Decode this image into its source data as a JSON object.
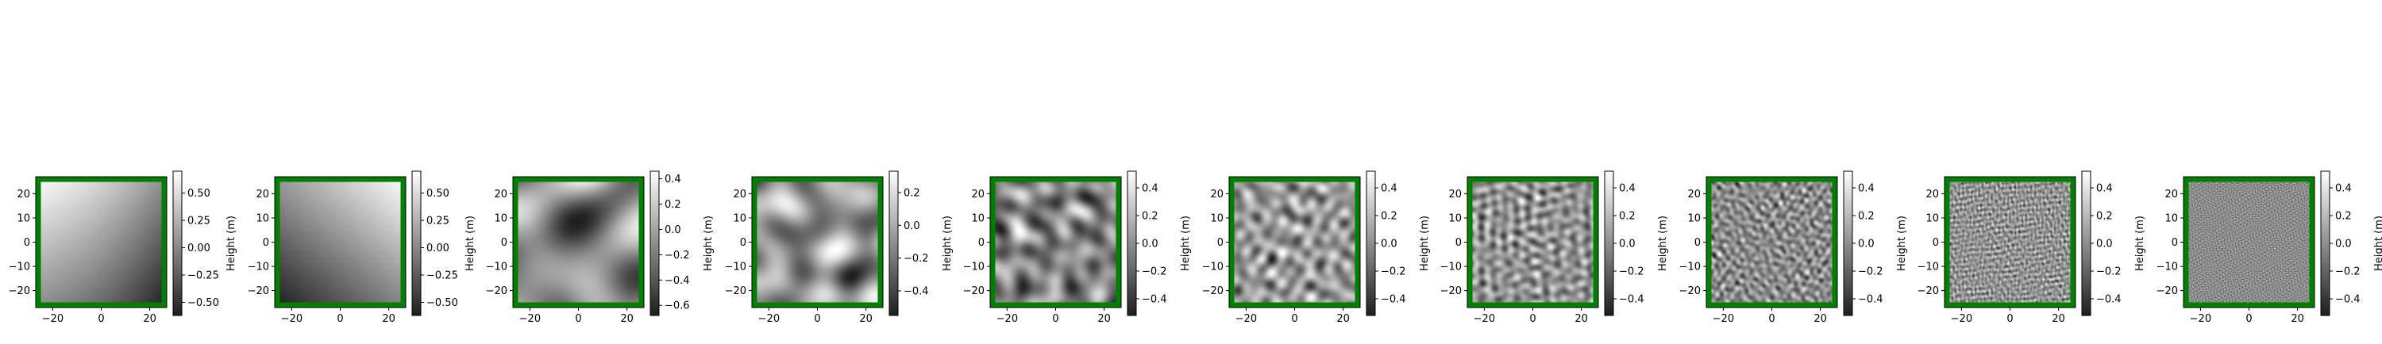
{
  "figure": {
    "description_colors": {
      "frame": "#008000",
      "colormap": "gray"
    }
  },
  "chart_data": [
    {
      "type": "heatmap",
      "index": 1,
      "xlabel": "",
      "ylabel": "",
      "xlim": [
        -27,
        27
      ],
      "ylim": [
        -27,
        27
      ],
      "xticks": [
        -20,
        0,
        20
      ],
      "yticks": [
        -20,
        -10,
        0,
        10,
        20
      ],
      "colorbar": {
        "label": "Height (m)",
        "range": [
          -0.62,
          0.7
        ],
        "ticks": [
          -0.5,
          -0.25,
          0.0,
          0.25,
          0.5
        ],
        "tick_labels": [
          "−0.50",
          "−0.25",
          "0.00",
          "0.25",
          "0.50"
        ]
      },
      "pattern": "smooth diagonal gradient, dark bottom-right, light top-left",
      "feature_scale": "very large"
    },
    {
      "type": "heatmap",
      "index": 2,
      "xlabel": "",
      "ylabel": "",
      "xlim": [
        -27,
        27
      ],
      "ylim": [
        -27,
        27
      ],
      "xticks": [
        -20,
        0,
        20
      ],
      "yticks": [
        -20,
        -10,
        0,
        10,
        20
      ],
      "colorbar": {
        "label": "Height (m)",
        "range": [
          -0.62,
          0.7
        ],
        "ticks": [
          -0.5,
          -0.25,
          0.0,
          0.25,
          0.5
        ],
        "tick_labels": [
          "−0.50",
          "−0.25",
          "0.00",
          "0.25",
          "0.50"
        ]
      },
      "pattern": "smooth diagonal gradient, dark bottom-left, light top-right",
      "feature_scale": "very large"
    },
    {
      "type": "heatmap",
      "index": 3,
      "xlabel": "",
      "ylabel": "",
      "xlim": [
        -27,
        27
      ],
      "ylim": [
        -27,
        27
      ],
      "xticks": [
        -20,
        0,
        20
      ],
      "yticks": [
        -20,
        -10,
        0,
        10,
        20
      ],
      "colorbar": {
        "label": "Height (m)",
        "range": [
          -0.68,
          0.46
        ],
        "ticks": [
          -0.6,
          -0.4,
          -0.2,
          0.0,
          0.2,
          0.4
        ],
        "tick_labels": [
          "−0.6",
          "−0.4",
          "−0.2",
          "0.0",
          "0.2",
          "0.4"
        ]
      },
      "pattern": "few large blobs",
      "feature_scale": "large"
    },
    {
      "type": "heatmap",
      "index": 4,
      "xlabel": "",
      "ylabel": "",
      "xlim": [
        -27,
        27
      ],
      "ylim": [
        -27,
        27
      ],
      "xticks": [
        -20,
        0,
        20
      ],
      "yticks": [
        -20,
        -10,
        0,
        10,
        20
      ],
      "colorbar": {
        "label": "Height (m)",
        "range": [
          -0.55,
          0.33
        ],
        "ticks": [
          -0.4,
          -0.2,
          0.0,
          0.2
        ],
        "tick_labels": [
          "−0.4",
          "−0.2",
          "0.0",
          "0.2"
        ]
      },
      "pattern": "smooth blobs",
      "feature_scale": "medium-large"
    },
    {
      "type": "heatmap",
      "index": 5,
      "xlabel": "",
      "ylabel": "",
      "xlim": [
        -27,
        27
      ],
      "ylim": [
        -27,
        27
      ],
      "xticks": [
        -20,
        0,
        20
      ],
      "yticks": [
        -20,
        -10,
        0,
        10,
        20
      ],
      "colorbar": {
        "label": "Height (m)",
        "range": [
          -0.52,
          0.52
        ],
        "ticks": [
          -0.4,
          -0.2,
          0.0,
          0.2,
          0.4
        ],
        "tick_labels": [
          "−0.4",
          "−0.2",
          "0.0",
          "0.2",
          "0.4"
        ]
      },
      "pattern": "blobs",
      "feature_scale": "medium"
    },
    {
      "type": "heatmap",
      "index": 6,
      "xlabel": "",
      "ylabel": "",
      "xlim": [
        -27,
        27
      ],
      "ylim": [
        -27,
        27
      ],
      "xticks": [
        -20,
        0,
        20
      ],
      "yticks": [
        -20,
        -10,
        0,
        10,
        20
      ],
      "colorbar": {
        "label": "Height (m)",
        "range": [
          -0.52,
          0.52
        ],
        "ticks": [
          -0.4,
          -0.2,
          0.0,
          0.2,
          0.4
        ],
        "tick_labels": [
          "−0.4",
          "−0.2",
          "0.0",
          "0.2",
          "0.4"
        ]
      },
      "pattern": "dense blobs",
      "feature_scale": "small-medium"
    },
    {
      "type": "heatmap",
      "index": 7,
      "xlabel": "",
      "ylabel": "",
      "xlim": [
        -27,
        27
      ],
      "ylim": [
        -27,
        27
      ],
      "xticks": [
        -20,
        0,
        20
      ],
      "yticks": [
        -20,
        -10,
        0,
        10,
        20
      ],
      "colorbar": {
        "label": "Height (m)",
        "range": [
          -0.52,
          0.52
        ],
        "ticks": [
          -0.4,
          -0.2,
          0.0,
          0.2,
          0.4
        ],
        "tick_labels": [
          "−0.4",
          "−0.2",
          "0.0",
          "0.2",
          "0.4"
        ]
      },
      "pattern": "fine mottled texture",
      "feature_scale": "small"
    },
    {
      "type": "heatmap",
      "index": 8,
      "xlabel": "",
      "ylabel": "",
      "xlim": [
        -27,
        27
      ],
      "ylim": [
        -27,
        27
      ],
      "xticks": [
        -20,
        0,
        20
      ],
      "yticks": [
        -20,
        -10,
        0,
        10,
        20
      ],
      "colorbar": {
        "label": "Height (m)",
        "range": [
          -0.52,
          0.52
        ],
        "ticks": [
          -0.4,
          -0.2,
          0.0,
          0.2,
          0.4
        ],
        "tick_labels": [
          "−0.4",
          "−0.2",
          "0.0",
          "0.2",
          "0.4"
        ]
      },
      "pattern": "very fine texture",
      "feature_scale": "very small"
    },
    {
      "type": "heatmap",
      "index": 9,
      "xlabel": "",
      "ylabel": "",
      "xlim": [
        -27,
        27
      ],
      "ylim": [
        -27,
        27
      ],
      "xticks": [
        -20,
        0,
        20
      ],
      "yticks": [
        -20,
        -10,
        0,
        10,
        20
      ],
      "colorbar": {
        "label": "Height (m)",
        "range": [
          -0.52,
          0.52
        ],
        "ticks": [
          -0.4,
          -0.2,
          0.0,
          0.2,
          0.4
        ],
        "tick_labels": [
          "−0.4",
          "−0.2",
          "0.0",
          "0.2",
          "0.4"
        ]
      },
      "pattern": "noise",
      "feature_scale": "tiny"
    },
    {
      "type": "heatmap",
      "index": 10,
      "xlabel": "",
      "ylabel": "",
      "xlim": [
        -27,
        27
      ],
      "ylim": [
        -27,
        27
      ],
      "xticks": [
        -20,
        0,
        20
      ],
      "yticks": [
        -20,
        -10,
        0,
        10,
        20
      ],
      "colorbar": {
        "label": "Height (m)",
        "range": [
          -0.52,
          0.52
        ],
        "ticks": [
          -0.4,
          -0.2,
          0.0,
          0.2,
          0.4
        ],
        "tick_labels": [
          "−0.4",
          "−0.2",
          "0.0",
          "0.2",
          "0.4"
        ]
      },
      "pattern": "noise",
      "feature_scale": "finest"
    }
  ]
}
